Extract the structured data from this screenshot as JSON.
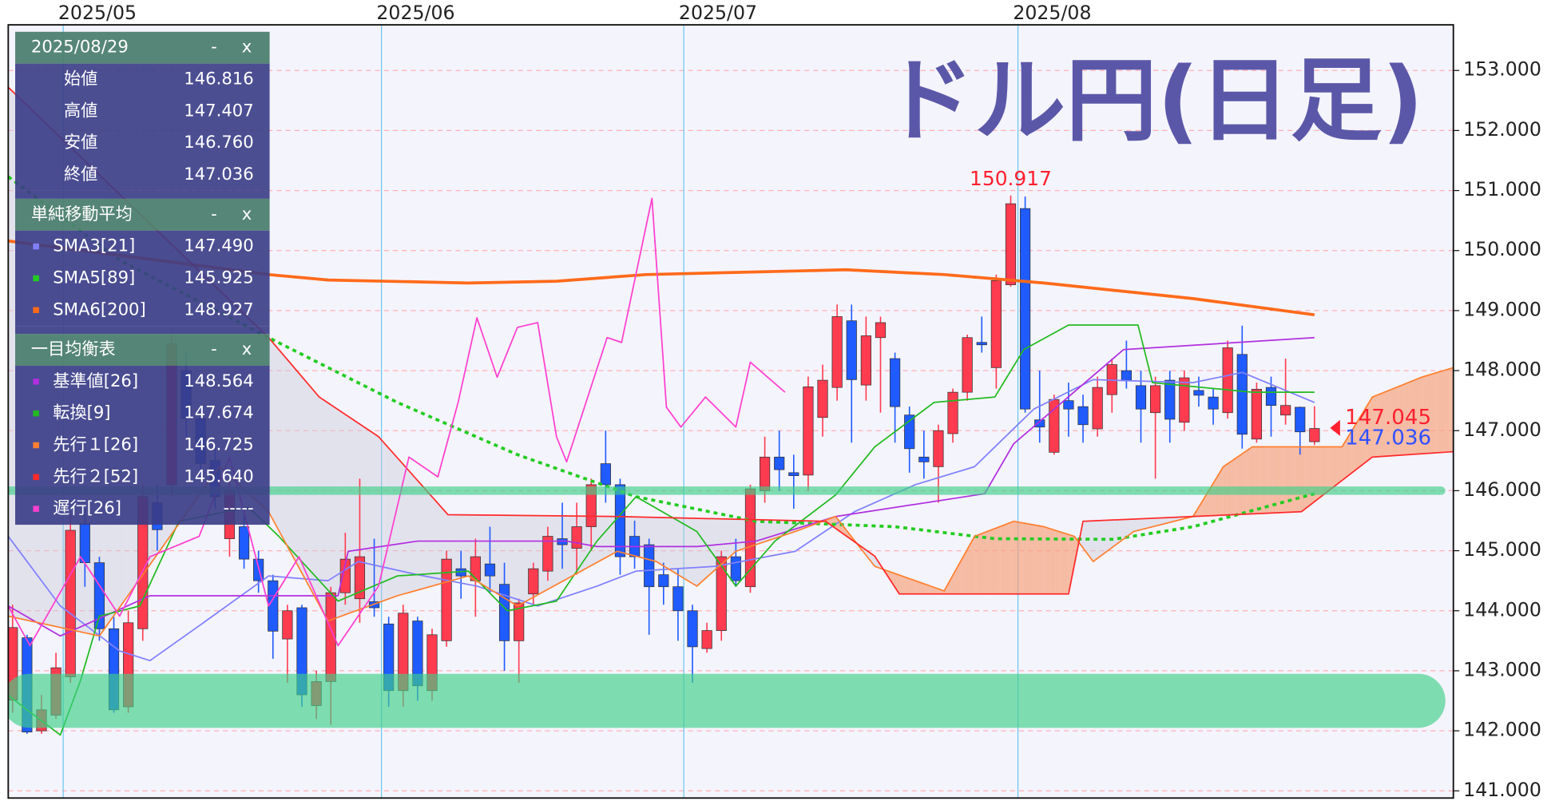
{
  "title": "ドル円(日足)",
  "info_panel": {
    "date": "2025/08/29",
    "minimize": "-",
    "close": "x",
    "ohlc": [
      {
        "label": "始値",
        "value": "146.816"
      },
      {
        "label": "高値",
        "value": "147.407"
      },
      {
        "label": "安値",
        "value": "146.760"
      },
      {
        "label": "終値",
        "value": "147.036"
      }
    ],
    "sections": [
      {
        "title": "単純移動平均",
        "series": [
          0,
          1,
          2
        ]
      },
      {
        "title": "一目均衡表",
        "series": [
          3,
          4,
          5,
          6,
          7
        ]
      }
    ],
    "values": [
      "147.490",
      "145.925",
      "148.927",
      "148.564",
      "147.674",
      "146.725",
      "145.640",
      "-----"
    ]
  },
  "chart_data": {
    "type": "candlestick",
    "xlim": [
      -0.3,
      99.6
    ],
    "ylim": [
      140.88,
      153.76
    ],
    "xticks": [
      {
        "value": 3.5,
        "label": "2025/05"
      },
      {
        "value": 25.5,
        "label": "2025/06"
      },
      {
        "value": 46.4,
        "label": "2025/07"
      },
      {
        "value": 69.5,
        "label": "2025/08"
      }
    ],
    "yticks": [
      {
        "value": 141,
        "label": "141.000"
      },
      {
        "value": 142,
        "label": "142.000"
      },
      {
        "value": 143,
        "label": "143.000"
      },
      {
        "value": 144,
        "label": "144.000"
      },
      {
        "value": 145,
        "label": "145.000"
      },
      {
        "value": 146,
        "label": "146.000"
      },
      {
        "value": 147,
        "label": "147.000"
      },
      {
        "value": 148,
        "label": "148.000"
      },
      {
        "value": 149,
        "label": "149.000"
      },
      {
        "value": 150,
        "label": "150.000"
      },
      {
        "value": 151,
        "label": "151.000"
      },
      {
        "value": 152,
        "label": "152.000"
      },
      {
        "value": 153,
        "label": "153.000"
      }
    ],
    "grid": true,
    "up_color": "#ff3b50",
    "down_color": "#1f5bff",
    "x": [
      0,
      1,
      2,
      3,
      4,
      5,
      6,
      7,
      8,
      9,
      10,
      11,
      12,
      13,
      14,
      15,
      16,
      17,
      18,
      19,
      20,
      21,
      22,
      23,
      24,
      25,
      26,
      27,
      28,
      29,
      30,
      31,
      32,
      33,
      34,
      35,
      36,
      37,
      38,
      39,
      40,
      41,
      42,
      43,
      44,
      45,
      46,
      47,
      48,
      49,
      50,
      51,
      52,
      53,
      54,
      55,
      56,
      57,
      58,
      59,
      60,
      61,
      62,
      63,
      64,
      65,
      66,
      67,
      68,
      69,
      70,
      71,
      72,
      73,
      74,
      75,
      76,
      77,
      78,
      79,
      80,
      81,
      82,
      83,
      84,
      85,
      86,
      87,
      88,
      89,
      90
    ],
    "open": [
      142.51,
      143.55,
      142.0,
      142.26,
      142.9,
      145.45,
      144.8,
      143.7,
      142.4,
      143.7,
      145.8,
      146.1,
      148.0,
      147.2,
      146.5,
      145.2,
      145.4,
      144.86,
      144.5,
      143.53,
      144.05,
      142.42,
      142.82,
      144.3,
      144.2,
      144.15,
      143.78,
      142.67,
      143.83,
      142.67,
      143.5,
      144.7,
      144.5,
      144.78,
      144.44,
      143.5,
      144.28,
      144.66,
      145.2,
      145.04,
      145.4,
      146.45,
      146.1,
      145.24,
      145.1,
      144.6,
      144.4,
      144.0,
      143.37,
      143.67,
      144.9,
      144.4,
      146.0,
      146.56,
      146.3,
      146.26,
      147.22,
      147.72,
      148.83,
      147.76,
      148.55,
      148.2,
      147.26,
      146.56,
      146.4,
      146.95,
      147.64,
      148.47,
      148.05,
      149.43,
      150.7,
      147.18,
      146.64,
      147.5,
      147.4,
      147.03,
      147.6,
      148.0,
      147.75,
      147.3,
      147.84,
      147.14,
      147.67,
      147.56,
      147.3,
      148.27,
      146.86,
      147.72,
      147.26,
      147.39,
      146.816
    ],
    "high": [
      144.1,
      143.6,
      142.6,
      143.3,
      145.6,
      145.7,
      144.9,
      143.9,
      144.0,
      146.1,
      146.1,
      148.6,
      148.3,
      147.4,
      146.7,
      146.2,
      145.6,
      145.0,
      144.6,
      144.1,
      144.1,
      143.0,
      144.4,
      145.3,
      146.2,
      145.2,
      143.9,
      144.1,
      143.9,
      143.7,
      145.0,
      145.0,
      145.2,
      145.4,
      144.8,
      144.2,
      144.8,
      145.4,
      145.8,
      145.8,
      146.2,
      147.0,
      146.2,
      145.5,
      145.2,
      144.8,
      144.7,
      144.1,
      143.8,
      145.0,
      145.2,
      146.1,
      146.9,
      147.0,
      146.6,
      147.9,
      148.1,
      149.1,
      149.1,
      148.9,
      148.9,
      148.3,
      147.4,
      147.0,
      147.1,
      147.7,
      148.6,
      148.9,
      149.6,
      150.917,
      150.9,
      148.0,
      147.6,
      147.8,
      147.6,
      147.9,
      148.2,
      148.5,
      148.0,
      147.9,
      148.0,
      148.0,
      147.9,
      147.7,
      148.5,
      148.75,
      147.8,
      147.9,
      148.2,
      147.4,
      147.407
    ],
    "low": [
      142.3,
      141.95,
      141.95,
      142.2,
      142.8,
      144.4,
      143.5,
      142.3,
      142.3,
      143.5,
      145.0,
      145.9,
      146.9,
      146.2,
      145.7,
      144.9,
      144.7,
      144.3,
      143.2,
      142.8,
      142.4,
      142.2,
      142.1,
      144.1,
      143.8,
      143.9,
      142.4,
      142.4,
      142.5,
      142.5,
      143.4,
      144.2,
      143.9,
      144.3,
      143.0,
      142.8,
      144.1,
      144.5,
      144.7,
      144.6,
      145.0,
      145.8,
      144.6,
      144.7,
      143.6,
      144.1,
      143.5,
      142.8,
      143.3,
      143.5,
      144.4,
      144.3,
      145.8,
      146.0,
      145.7,
      146.0,
      146.9,
      147.5,
      146.8,
      147.5,
      147.3,
      146.8,
      146.3,
      146.2,
      145.8,
      146.8,
      147.5,
      148.3,
      147.7,
      149.4,
      147.3,
      146.8,
      146.6,
      146.9,
      146.8,
      146.9,
      147.3,
      147.7,
      146.8,
      146.2,
      146.8,
      147.0,
      147.4,
      147.1,
      147.2,
      146.7,
      146.8,
      146.9,
      147.1,
      146.6,
      146.76
    ],
    "close": [
      143.72,
      141.98,
      142.35,
      143.05,
      145.34,
      144.8,
      143.7,
      142.35,
      143.8,
      145.9,
      145.35,
      148.45,
      147.2,
      146.45,
      145.9,
      146.0,
      144.86,
      144.5,
      143.66,
      144.0,
      142.6,
      142.82,
      144.3,
      144.86,
      144.9,
      144.05,
      142.67,
      143.96,
      142.75,
      143.6,
      144.86,
      144.58,
      144.9,
      144.58,
      143.5,
      144.13,
      144.7,
      145.24,
      145.1,
      145.4,
      146.1,
      146.1,
      144.9,
      144.9,
      144.4,
      144.4,
      144.0,
      143.4,
      143.67,
      144.9,
      144.5,
      146.03,
      146.56,
      146.35,
      146.25,
      147.73,
      147.84,
      148.9,
      147.85,
      148.58,
      148.8,
      147.4,
      146.7,
      146.48,
      147.0,
      147.64,
      148.55,
      148.43,
      149.5,
      150.78,
      147.36,
      147.06,
      147.52,
      147.36,
      147.1,
      147.72,
      148.1,
      147.84,
      147.36,
      147.75,
      147.19,
      147.88,
      147.59,
      147.36,
      148.38,
      146.94,
      147.69,
      147.42,
      147.42,
      146.98,
      147.036
    ],
    "series": [
      {
        "name": "SMA3[21]",
        "color": "#8080ff",
        "width": 1.4,
        "x": [
          -0.3,
          3.3,
          7.4,
          9.5,
          12.9,
          17.7,
          21.8,
          23.9,
          28.0,
          32.1,
          36.3,
          40.4,
          43.1,
          48.6,
          54.1,
          58.2,
          62.4,
          66.5,
          70.6,
          74.7,
          81.6,
          85.0,
          90
        ],
        "values": [
          145.24,
          144.08,
          143.33,
          143.17,
          143.75,
          144.58,
          144.5,
          144.82,
          144.6,
          144.41,
          144.08,
          144.41,
          144.66,
          144.74,
          144.99,
          145.65,
          146.1,
          146.4,
          147.36,
          147.85,
          147.8,
          147.97,
          147.47
        ]
      },
      {
        "name": "SMA5[89]",
        "color": "#22cc22",
        "width": 3,
        "dash": true,
        "x": [
          -0.3,
          7.4,
          17.7,
          26.6,
          34.9,
          43.1,
          51.4,
          61.0,
          67.9,
          76.1,
          81.6,
          90
        ],
        "values": [
          151.23,
          149.84,
          148.55,
          147.47,
          146.6,
          145.9,
          145.49,
          145.4,
          145.2,
          145.19,
          145.4,
          145.95
        ]
      },
      {
        "name": "SMA6[200]",
        "color": "#ff6a1a",
        "width": 3,
        "x": [
          -0.3,
          17.7,
          21.8,
          31.5,
          37.6,
          43.8,
          57.6,
          64.4,
          71.3,
          81.6,
          90
        ],
        "values": [
          150.16,
          149.6,
          149.51,
          149.46,
          149.49,
          149.6,
          149.68,
          149.6,
          149.46,
          149.2,
          148.93
        ]
      },
      {
        "name": "基準値[26]",
        "color": "#b12fe0",
        "width": 1.4,
        "x": [
          -0.3,
          3.3,
          9.5,
          22.5,
          23.2,
          28.0,
          38.3,
          40.4,
          47.3,
          51.4,
          56.9,
          67.2,
          69.2,
          76.8,
          90
        ],
        "values": [
          144.08,
          143.58,
          144.25,
          144.25,
          144.99,
          145.16,
          145.16,
          145.07,
          145.07,
          145.16,
          145.57,
          145.95,
          146.78,
          148.35,
          148.55
        ]
      },
      {
        "name": "転換[9]",
        "color": "#22bb22",
        "width": 1.4,
        "x": [
          -0.3,
          3.3,
          4.7,
          6.0,
          8.8,
          11.5,
          16.3,
          18.4,
          22.5,
          26.6,
          31.5,
          34.2,
          37.6,
          40.4,
          43.1,
          47.3,
          50.0,
          52.7,
          56.9,
          59.6,
          63.7,
          67.9,
          69.9,
          73.0,
          77.8,
          78.8,
          85.7,
          90
        ],
        "values": [
          142.59,
          141.93,
          142.84,
          143.91,
          144.08,
          145.49,
          145.73,
          145.24,
          144.16,
          144.58,
          144.66,
          144.0,
          144.16,
          145.16,
          145.9,
          145.32,
          144.41,
          145.16,
          145.93,
          146.73,
          147.47,
          147.56,
          148.35,
          148.76,
          148.76,
          147.8,
          147.64,
          147.64
        ]
      },
      {
        "name": "先行１[26]",
        "color": "#ff8030",
        "width": 1.4,
        "x": [
          -0.3,
          6.0,
          14.3,
          17.7,
          21.8,
          26.6,
          31.5,
          34.9,
          41.8,
          44.5,
          47.3,
          50.0,
          54.1,
          56.9,
          59.6,
          64.4,
          66.5,
          69.2,
          71.3,
          73.4,
          74.7,
          77.5,
          81.6,
          83.7,
          85.7,
          91.9,
          94.0,
          97.4,
          99.6
        ],
        "values": [
          143.91,
          143.58,
          146.4,
          145.65,
          143.83,
          144.25,
          144.58,
          144.08,
          144.99,
          144.82,
          144.41,
          144.99,
          145.32,
          145.57,
          144.74,
          144.33,
          145.24,
          145.49,
          145.4,
          145.24,
          144.82,
          145.32,
          145.57,
          146.4,
          146.73,
          146.73,
          147.56,
          147.89,
          148.05
        ]
      },
      {
        "name": "先行２[52]",
        "color": "#ff2a2a",
        "width": 1.4,
        "x": [
          -0.3,
          17.7,
          21.2,
          25.3,
          30.1,
          41.8,
          56.2,
          59.6,
          61.3,
          73.0,
          74.0,
          89.1,
          94.0,
          99.6
        ],
        "values": [
          152.72,
          148.55,
          147.56,
          146.9,
          145.6,
          145.57,
          145.49,
          144.91,
          144.28,
          144.28,
          145.49,
          145.65,
          146.56,
          146.65
        ]
      },
      {
        "name": "遅行[26]",
        "color": "#ff3fcf",
        "width": 1.4,
        "x": [
          -0.3,
          1.2,
          4.7,
          7.4,
          9.5,
          12.9,
          15.0,
          17.7,
          19.8,
          22.5,
          25.3,
          27.4,
          29.4,
          30.8,
          32.1,
          33.5,
          34.9,
          36.3,
          37.6,
          38.3,
          41.1,
          42.1,
          44.2,
          45.2,
          46.2,
          47.9,
          50.0,
          51.0,
          53.4
        ],
        "values": [
          144.08,
          143.42,
          144.9,
          143.91,
          144.9,
          145.24,
          146.56,
          144.08,
          144.9,
          143.42,
          144.41,
          146.56,
          146.23,
          147.47,
          148.88,
          147.89,
          148.72,
          148.8,
          146.9,
          146.48,
          148.55,
          148.47,
          150.87,
          147.39,
          147.06,
          147.56,
          147.06,
          148.14,
          147.64
        ]
      }
    ],
    "cloud": {
      "upper_color": "#f7a27e",
      "lower_color": "#c8c8d8"
    },
    "bands": [
      {
        "low": 142.05,
        "high": 142.95,
        "color": "#3fcf88"
      },
      {
        "low": 145.93,
        "high": 146.07,
        "color": "#3fcf88"
      }
    ],
    "annotations": [
      {
        "x": 69,
        "value": 150.917,
        "label": "150.917",
        "color": "#ff2030"
      }
    ],
    "last_labels": [
      {
        "value": 147.045,
        "label": "147.045",
        "color": "#ff2030"
      },
      {
        "value": 147.036,
        "label": "147.036",
        "color": "#3050ff"
      }
    ]
  }
}
